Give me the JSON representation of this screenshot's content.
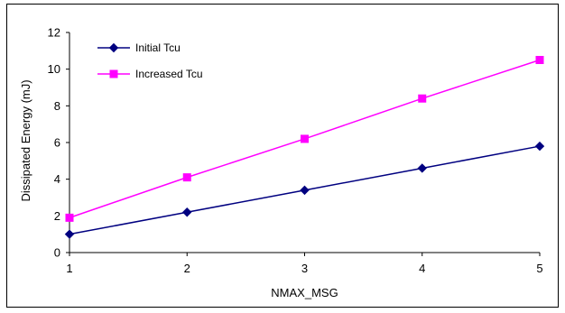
{
  "chart_data": {
    "type": "line",
    "x": [
      1,
      2,
      3,
      4,
      5
    ],
    "xlabel": "NMAX_MSG",
    "ylabel": "Dissipated Energy (mJ)",
    "xlim": [
      1,
      5
    ],
    "ylim": [
      0,
      12
    ],
    "yticks": [
      0,
      2,
      4,
      6,
      8,
      10,
      12
    ],
    "xticks": [
      1,
      2,
      3,
      4,
      5
    ],
    "grid": false,
    "legend_position": "top-left",
    "series": [
      {
        "name": "Initial Tcu",
        "color": "#000080",
        "marker": "diamond",
        "values": [
          1.0,
          2.2,
          3.4,
          4.6,
          5.8
        ]
      },
      {
        "name": "Increased Tcu",
        "color": "#ff00ff",
        "marker": "square",
        "values": [
          1.9,
          4.1,
          6.2,
          8.4,
          10.5
        ]
      }
    ]
  }
}
